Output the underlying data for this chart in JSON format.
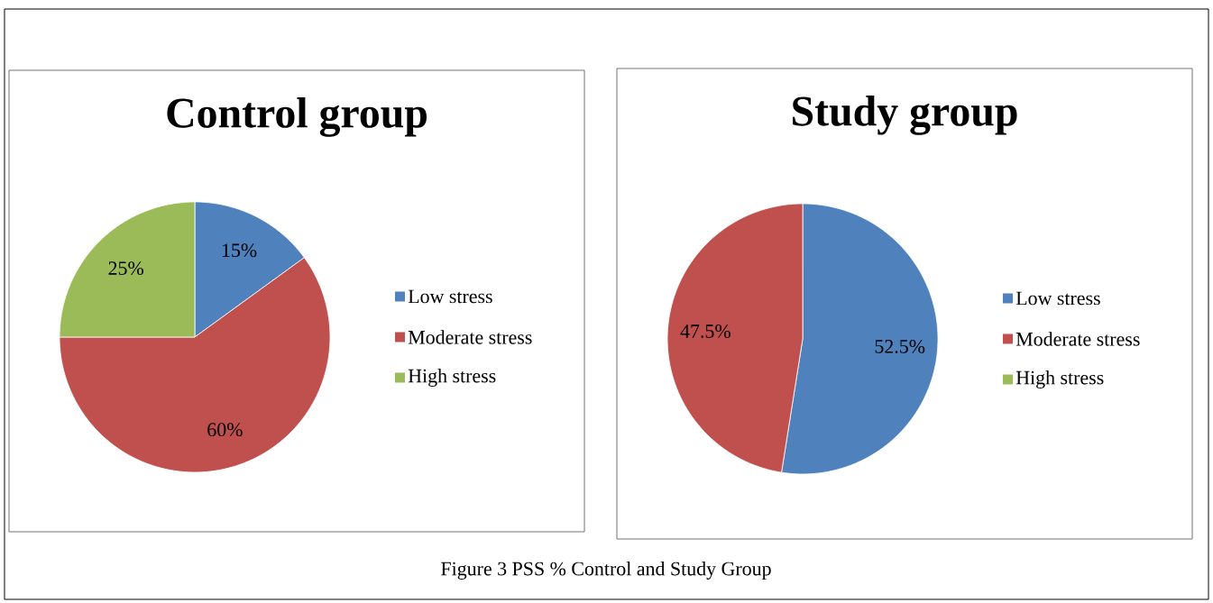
{
  "chart_data": [
    {
      "type": "pie",
      "title": "Control group",
      "categories": [
        "Low stress",
        "Moderate stress",
        "High stress"
      ],
      "values": [
        15,
        60,
        25
      ],
      "colors": [
        "#4f81bd",
        "#c0504d",
        "#9bbb59"
      ],
      "value_labels": [
        "15%",
        "60%",
        "25%"
      ],
      "legend": "right"
    },
    {
      "type": "pie",
      "title": "Study group",
      "categories": [
        "Low stress",
        "Moderate stress",
        "High stress"
      ],
      "values": [
        52.5,
        47.5,
        0
      ],
      "colors": [
        "#4f81bd",
        "#c0504d",
        "#9bbb59"
      ],
      "value_labels": [
        "52.5%",
        "47.5%",
        null
      ],
      "legend": "right",
      "annotations": [
        "Figure 3 PSS % Control and Study Group"
      ]
    }
  ]
}
